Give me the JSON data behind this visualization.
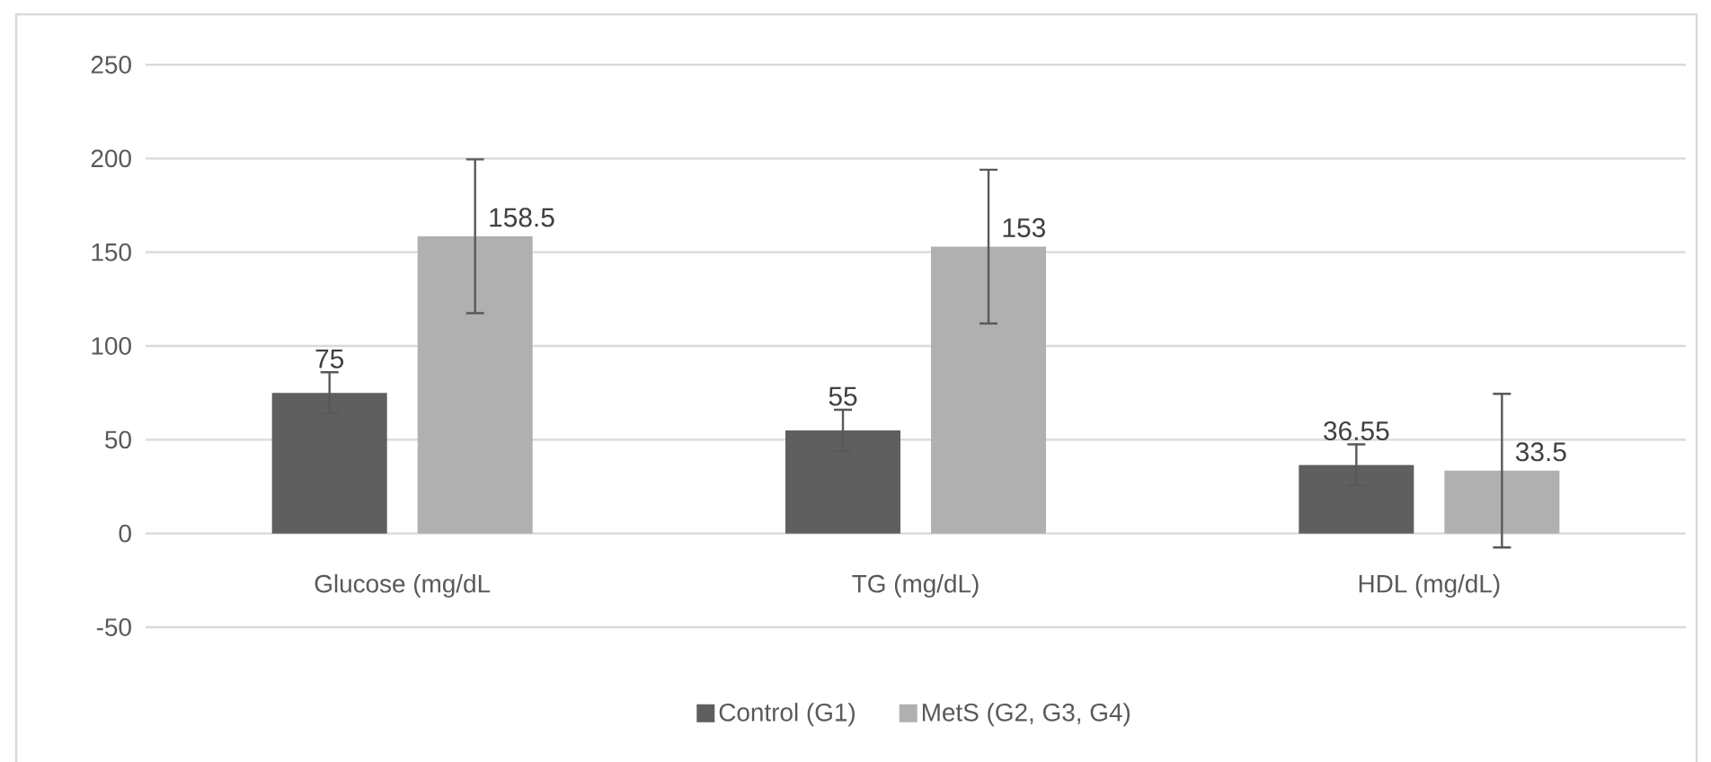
{
  "chart_data": {
    "type": "bar",
    "categories": [
      "Glucose (mg/dL",
      "TG (mg/dL)",
      "HDL (mg/dL)"
    ],
    "series": [
      {
        "name": "Control (G1)",
        "color": "#5f5f5f",
        "values": [
          75,
          55,
          36.55
        ],
        "errors": [
          11,
          11,
          11
        ]
      },
      {
        "name": "MetS (G2, G3, G4)",
        "color": "#b0b0b0",
        "values": [
          158.5,
          153,
          33.5
        ],
        "errors": [
          41,
          41,
          41
        ]
      }
    ],
    "ylim": [
      -50,
      250
    ],
    "yticks": [
      -50,
      0,
      50,
      100,
      150,
      200,
      250
    ],
    "grid": "y",
    "legend": "bottom",
    "data_labels": true
  }
}
